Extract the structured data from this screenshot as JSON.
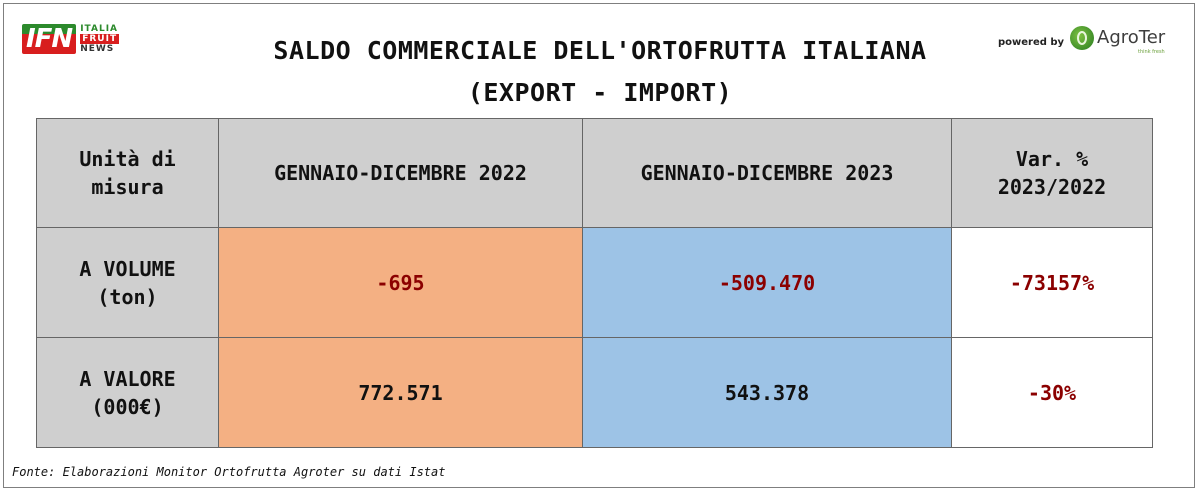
{
  "logo": {
    "ifn": "IFN",
    "line1": "ITALIA",
    "line2": "FRUIT",
    "line3": "NEWS"
  },
  "title": {
    "line1": "SALDO COMMERCIALE DELL'ORTOFRUTTA ITALIANA",
    "line2": "(EXPORT - IMPORT)"
  },
  "sponsor": {
    "powered_by": "powered by",
    "brand": "AgroTer",
    "tagline": "think fresh"
  },
  "table": {
    "headers": [
      "Unità di misura",
      "GENNAIO-DICEMBRE 2022",
      "GENNAIO-DICEMBRE 2023",
      "Var. % 2023/2022"
    ],
    "header_lines": {
      "h1a": "Unità di",
      "h1b": "misura",
      "h4a": "Var. %",
      "h4b": "2023/2022"
    },
    "rows": [
      {
        "label_a": "A VOLUME",
        "label_b": "(ton)",
        "v2022": "-695",
        "v2023": "-509.470",
        "var": "-73157%"
      },
      {
        "label_a": "A VALORE",
        "label_b": "(000€)",
        "v2022": "772.571",
        "v2023": "543.378",
        "var": "-30%"
      }
    ]
  },
  "colors": {
    "header_bg": "#cfcfcf",
    "col2022_bg": "#f4b083",
    "col2023_bg": "#9dc3e6",
    "negative_text": "#8b0000"
  },
  "source": "Fonte: Elaborazioni Monitor Ortofrutta Agroter su dati Istat"
}
